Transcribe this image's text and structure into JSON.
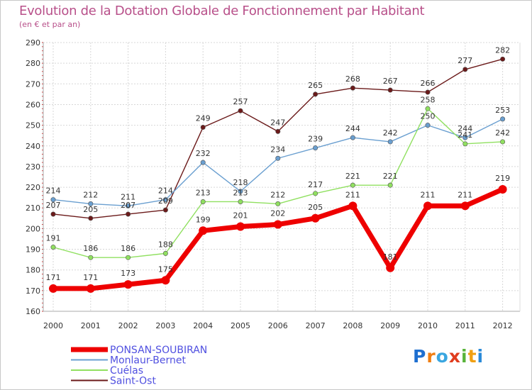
{
  "chart_data": {
    "type": "line",
    "title": "Evolution de la Dotation Globale de Fonctionnement par Habitant",
    "subtitle": "(en € et par an)",
    "x": [
      "2000",
      "2001",
      "2002",
      "2003",
      "2004",
      "2005",
      "2006",
      "2007",
      "2008",
      "2009",
      "2010",
      "2011",
      "2012"
    ],
    "ylim": [
      160,
      290
    ],
    "yticks": [
      160,
      170,
      180,
      190,
      200,
      210,
      220,
      230,
      240,
      250,
      260,
      270,
      280,
      290
    ],
    "grid": true,
    "legend_position": "bottom-left",
    "series": [
      {
        "name": "Saint-Ost",
        "color": "#6b1a1a",
        "values": [
          207,
          205,
          207,
          209,
          249,
          257,
          247,
          265,
          268,
          267,
          266,
          277,
          282
        ]
      },
      {
        "name": "Monlaur-Bernet",
        "color": "#6a9fd0",
        "values": [
          214,
          212,
          211,
          214,
          232,
          218,
          234,
          239,
          244,
          242,
          250,
          244,
          253
        ]
      },
      {
        "name": "Cuélas",
        "color": "#90e060",
        "values": [
          191,
          186,
          186,
          188,
          213,
          213,
          212,
          217,
          221,
          221,
          258,
          241,
          242
        ]
      },
      {
        "name": "PONSAN-SOUBIRAN",
        "color": "#ee0000",
        "values": [
          171,
          171,
          173,
          175,
          199,
          201,
          202,
          205,
          211,
          181,
          211,
          211,
          219
        ]
      }
    ],
    "legend_order": [
      "PONSAN-SOUBIRAN",
      "Monlaur-Bernet",
      "Cuélas",
      "Saint-Ost"
    ]
  },
  "logo": {
    "letters": [
      "P",
      "r",
      "o",
      "x",
      "i",
      "t",
      "i"
    ],
    "colors": [
      "#1e6fd0",
      "#f07e12",
      "#3aa6e0",
      "#e03c1e",
      "#58b33a",
      "#f0a012",
      "#2a8ad8"
    ]
  }
}
